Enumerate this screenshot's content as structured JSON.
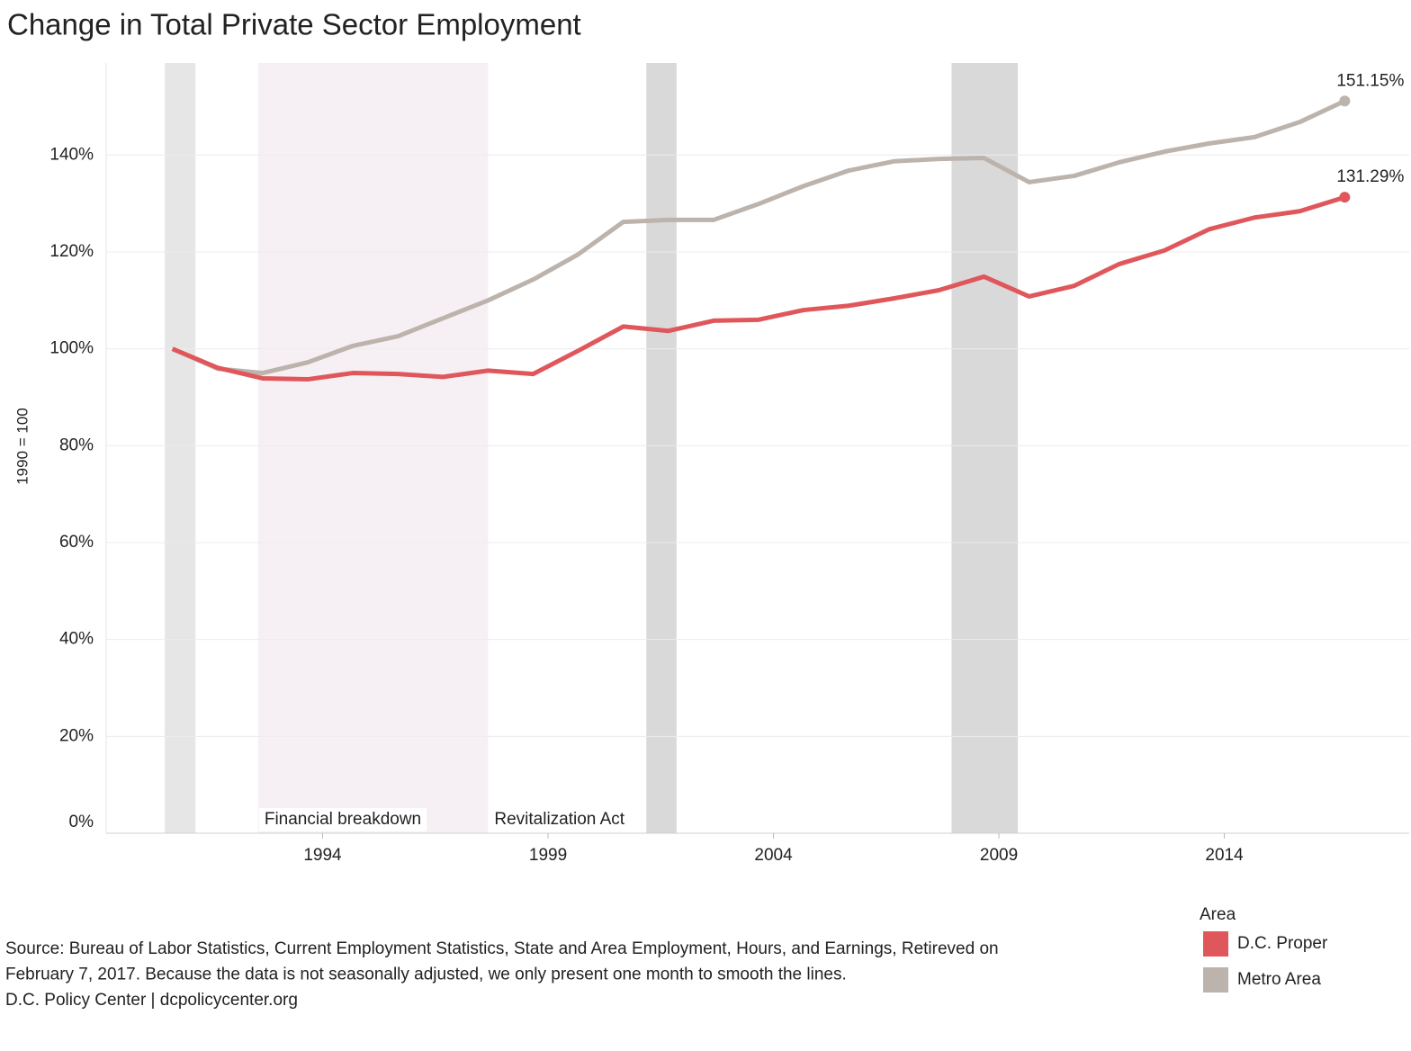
{
  "chart_data": {
    "type": "line",
    "title": "Change in Total Private Sector Employment",
    "y_label": "1990 = 100",
    "x": [
      1990.67,
      1991.67,
      1992.67,
      1993.67,
      1994.67,
      1995.67,
      1996.67,
      1997.67,
      1998.67,
      1999.67,
      2000.67,
      2001.67,
      2002.67,
      2003.67,
      2004.67,
      2005.67,
      2006.67,
      2007.67,
      2008.67,
      2009.67,
      2010.67,
      2011.67,
      2012.67,
      2013.67,
      2014.67,
      2015.67,
      2016.67
    ],
    "series": [
      {
        "name": "D.C. Proper",
        "color": "#e0575b",
        "values": [
          100,
          96.1,
          93.9,
          93.7,
          95.0,
          94.8,
          94.2,
          95.5,
          94.8,
          99.6,
          104.6,
          103.7,
          105.8,
          106.0,
          108.0,
          108.9,
          110.4,
          112.1,
          114.9,
          110.8,
          113.0,
          117.5,
          120.3,
          124.7,
          127.1,
          128.4,
          131.29
        ],
        "value_labels": [
          null,
          null,
          null,
          null,
          null,
          null,
          null,
          null,
          null,
          null,
          null,
          null,
          null,
          null,
          null,
          null,
          null,
          null,
          null,
          null,
          null,
          null,
          null,
          null,
          null,
          null,
          "131.29%"
        ]
      },
      {
        "name": "Metro Area",
        "color": "#bcb3ac",
        "values": [
          100,
          95.9,
          95.0,
          97.2,
          100.6,
          102.6,
          106.3,
          110.0,
          114.3,
          119.5,
          126.2,
          126.6,
          126.6,
          129.9,
          133.6,
          136.8,
          138.7,
          139.2,
          139.4,
          134.4,
          135.7,
          138.5,
          140.7,
          142.4,
          143.7,
          146.8,
          151.15
        ],
        "value_labels": [
          null,
          null,
          null,
          null,
          null,
          null,
          null,
          null,
          null,
          null,
          null,
          null,
          null,
          null,
          null,
          null,
          null,
          null,
          null,
          null,
          null,
          null,
          null,
          null,
          null,
          null,
          "151.15%"
        ]
      }
    ],
    "xlim": [
      1989.2,
      2018.1
    ],
    "xticks": [
      1994,
      1999,
      2004,
      2009,
      2014
    ],
    "ylim": [
      0,
      159
    ],
    "yticks": [
      {
        "value": 0,
        "label": "0%"
      },
      {
        "value": 20,
        "label": "20%"
      },
      {
        "value": 40,
        "label": "40%"
      },
      {
        "value": 60,
        "label": "60%"
      },
      {
        "value": 80,
        "label": "80%"
      },
      {
        "value": 100,
        "label": "100%"
      },
      {
        "value": 120,
        "label": "120%"
      },
      {
        "value": 140,
        "label": "140%"
      }
    ],
    "grid": true,
    "bands": [
      {
        "start": 1990.5,
        "end": 1991.18,
        "color": "#e6e6e6"
      },
      {
        "start": 1992.57,
        "end": 1997.67,
        "color": "#f6f0f4",
        "label": "Financial breakdown"
      },
      {
        "start": 2001.18,
        "end": 2001.85,
        "color": "#d9d9d9"
      },
      {
        "start": 2007.95,
        "end": 2009.42,
        "color": "#d9d9d9"
      }
    ],
    "annotations": [
      {
        "text": "Revitalization Act",
        "x": 1997.67
      }
    ],
    "legend_title": "Area",
    "legend": "bottom-right",
    "source": [
      "Source: Bureau of Labor Statistics, Current Employment Statistics, State and Area Employment, Hours, and Earnings, Retireved on",
      "February 7, 2017. Because the data is not seasonally adjusted, we only present one month to smooth the lines.",
      "D.C. Policy Center | dcpolicycenter.org"
    ]
  }
}
